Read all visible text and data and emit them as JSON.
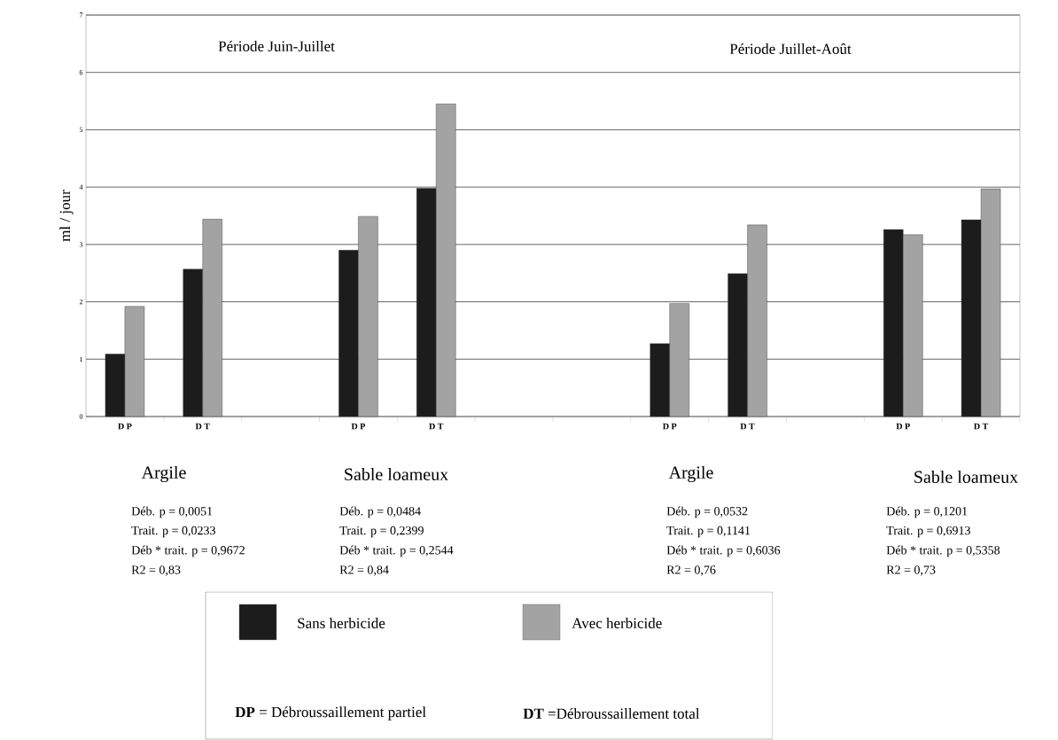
{
  "chart_data": {
    "type": "bar",
    "ylabel": "ml / jour",
    "categories": [
      "D P",
      "D T",
      null,
      "D P",
      "D T",
      null,
      null,
      "D P",
      "D T",
      null,
      "D P",
      "D T"
    ],
    "series": [
      {
        "name": "Sans herbicide",
        "color": "#1c1c1c",
        "values": [
          1.09,
          2.57,
          null,
          2.9,
          3.98,
          null,
          null,
          1.27,
          2.49,
          null,
          3.26,
          3.43
        ]
      },
      {
        "name": "Avec herbicide",
        "color": "#a3a3a3",
        "values": [
          1.92,
          3.44,
          null,
          3.49,
          5.45,
          null,
          null,
          1.97,
          3.34,
          null,
          3.17,
          3.97
        ]
      }
    ],
    "ylim": [
      0,
      7
    ],
    "yticks": [
      0,
      1,
      2,
      3,
      4,
      5,
      6,
      7
    ],
    "grid": "y",
    "legend": "bottom",
    "annotations": [
      "Période Juin-Juillet",
      "Période Juillet-Août",
      "Argile",
      "Sable loameux",
      "Argile",
      "Sable loameux",
      "Déb. p = 0,0051",
      "Trait. p = 0,0233",
      "Déb * trait. p = 0,9672",
      "R2 = 0,83",
      "Déb. p = 0,0484",
      "Trait. p = 0,2399",
      "Déb * trait. p = 0,2544",
      "R2 = 0,84",
      "Déb. p = 0,0532",
      "Trait. p = 0,1141",
      "Déb * trait. p = 0,6036",
      "R2 = 0,76",
      "Déb. p = 0,1201",
      "Trait. p = 0,6913",
      "Déb * trait. p = 0,5358",
      "R2 = 0,73",
      "**DP** = Débroussaillement partiel",
      "**DT** =Débroussaillement total"
    ]
  }
}
